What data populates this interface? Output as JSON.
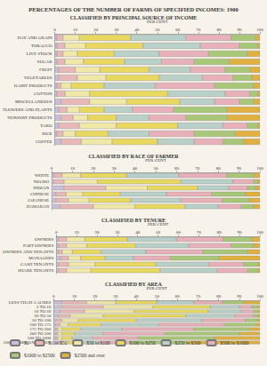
{
  "title": "PERCENTAGES OF THE NUMBER OF FARMS OF SPECIFIED INCOMES: 1900",
  "chart_data": [
    {
      "type": "bar",
      "orientation": "horizontal",
      "stacked": true,
      "grid": false,
      "title": "CLASSIFIED BY PRINCIPAL SOURCE OF INCOME",
      "xlabel": "PER CENT",
      "xlim": [
        0,
        100
      ],
      "xticks": [
        0,
        10,
        20,
        30,
        40,
        50,
        60,
        70,
        80,
        90,
        100
      ],
      "categories": [
        "HAY AND GRAIN",
        "TOBACCO",
        "LIVE STOCK",
        "SUGAR",
        "FRUIT",
        "VEGETABLES",
        "DAIRY PRODUCTS",
        "COTTON",
        "MISCELLANEOUS",
        "FLOWERS AND PLANTS",
        "NURSERY PRODUCTS",
        "TARO",
        "RICE",
        "COFFEE"
      ],
      "series": [
        {
          "name": "$0",
          "color": "#c8c0d8",
          "values": [
            1,
            1,
            1,
            1,
            2,
            2,
            1,
            1,
            3,
            2,
            3,
            2,
            1,
            3
          ]
        },
        {
          "name": "$1 to $50",
          "color": "#e8b8b8",
          "values": [
            3,
            4,
            3,
            4,
            8,
            9,
            2,
            4,
            14,
            4,
            6,
            10,
            3,
            10
          ]
        },
        {
          "name": "$50 to $100",
          "color": "#f0e8a8",
          "values": [
            8,
            10,
            7,
            9,
            12,
            14,
            5,
            12,
            18,
            6,
            7,
            18,
            6,
            15
          ]
        },
        {
          "name": "$100 to $250",
          "color": "#e8d860",
          "values": [
            25,
            28,
            18,
            20,
            24,
            26,
            16,
            38,
            26,
            12,
            14,
            30,
            16,
            22
          ]
        },
        {
          "name": "$250 to $500",
          "color": "#b8d0c8",
          "values": [
            27,
            28,
            22,
            18,
            20,
            21,
            25,
            28,
            17,
            14,
            16,
            22,
            20,
            18
          ]
        },
        {
          "name": "$500 to $1000",
          "color": "#e8b0b8",
          "values": [
            22,
            19,
            24,
            16,
            17,
            15,
            29,
            12,
            12,
            20,
            18,
            12,
            22,
            14
          ]
        },
        {
          "name": "$1000 to $2500",
          "color": "#a8c878",
          "values": [
            12,
            9,
            19,
            17,
            12,
            9,
            19,
            4,
            7,
            26,
            20,
            5,
            20,
            10
          ]
        },
        {
          "name": "$2500 and over",
          "color": "#e0b040",
          "values": [
            2,
            1,
            6,
            15,
            5,
            4,
            3,
            1,
            3,
            16,
            16,
            1,
            12,
            8
          ]
        }
      ]
    },
    {
      "type": "bar",
      "orientation": "horizontal",
      "stacked": true,
      "grid": false,
      "title": "CLASSIFIED BY RACE OF FARMER",
      "xlabel": "PER CENT",
      "xlim": [
        0,
        100
      ],
      "xticks": [
        0,
        10,
        20,
        30,
        40,
        50,
        60,
        70,
        80,
        90,
        100
      ],
      "categories": [
        "WHITE",
        "NEGRO",
        "INDIAN",
        "CHINESE",
        "JAPANESE",
        "HAWAIIAN"
      ],
      "series": [
        {
          "name": "$0",
          "color": "#c8c0d8",
          "values": [
            1,
            1,
            6,
            2,
            2,
            4
          ]
        },
        {
          "name": "$1 to $50",
          "color": "#e8b8b8",
          "values": [
            4,
            5,
            20,
            5,
            6,
            16
          ]
        },
        {
          "name": "$50 to $100",
          "color": "#f0e8a8",
          "values": [
            9,
            16,
            20,
            8,
            10,
            20
          ]
        },
        {
          "name": "$100 to $250",
          "color": "#e8d860",
          "values": [
            22,
            40,
            24,
            18,
            20,
            24
          ]
        },
        {
          "name": "$250 to $500",
          "color": "#b8d0c8",
          "values": [
            25,
            25,
            15,
            22,
            24,
            16
          ]
        },
        {
          "name": "$500 to $1000",
          "color": "#e8b0b8",
          "values": [
            23,
            10,
            9,
            22,
            20,
            11
          ]
        },
        {
          "name": "$1000 to $2500",
          "color": "#a8c878",
          "values": [
            13,
            2,
            4,
            16,
            13,
            6
          ]
        },
        {
          "name": "$2500 and over",
          "color": "#e0b040",
          "values": [
            3,
            1,
            2,
            7,
            5,
            3
          ]
        }
      ]
    },
    {
      "type": "bar",
      "orientation": "horizontal",
      "stacked": true,
      "grid": false,
      "title": "CLASSIFIED BY TENURE",
      "xlabel": "PER CENT",
      "xlim": [
        0,
        100
      ],
      "xticks": [
        0,
        10,
        20,
        30,
        40,
        50,
        60,
        70,
        80,
        90,
        100
      ],
      "categories": [
        "OWNERS",
        "PART OWNERS",
        "OWNERS AND TENANTS",
        "MANAGERS",
        "CASH TENANTS",
        "SHARE TENANTS"
      ],
      "series": [
        {
          "name": "$0",
          "color": "#c8c0d8",
          "values": [
            1,
            1,
            1,
            2,
            1,
            1
          ]
        },
        {
          "name": "$1 to $50",
          "color": "#e8b8b8",
          "values": [
            4,
            4,
            2,
            4,
            5,
            4
          ]
        },
        {
          "name": "$50 to $100",
          "color": "#f0e8a8",
          "values": [
            9,
            10,
            5,
            6,
            13,
            12
          ]
        },
        {
          "name": "$100 to $250",
          "color": "#e8d860",
          "values": [
            21,
            24,
            14,
            12,
            30,
            34
          ]
        },
        {
          "name": "$250 to $500",
          "color": "#b8d0c8",
          "values": [
            24,
            26,
            22,
            14,
            26,
            28
          ]
        },
        {
          "name": "$500 to $1000",
          "color": "#e8b0b8",
          "values": [
            23,
            21,
            28,
            18,
            17,
            15
          ]
        },
        {
          "name": "$1000 to $2500",
          "color": "#a8c878",
          "values": [
            14,
            11,
            22,
            24,
            7,
            5
          ]
        },
        {
          "name": "$2500 and over",
          "color": "#e0b040",
          "values": [
            4,
            3,
            6,
            20,
            1,
            1
          ]
        }
      ]
    },
    {
      "type": "bar",
      "orientation": "horizontal",
      "stacked": true,
      "grid": false,
      "legend": "bottom",
      "title": "CLASSIFIED BY AREA",
      "xlabel": "PER CENT",
      "xlim": [
        0,
        100
      ],
      "xticks": [
        0,
        10,
        20,
        30,
        40,
        50,
        60,
        70,
        80,
        90,
        100
      ],
      "categories": [
        "LESS THAN 3 ACRES",
        "3 TO 10",
        "10 TO 20",
        "20 TO 50",
        "50 TO 100",
        "100 TO 175",
        "175 TO 260",
        "260 TO 500",
        "500 TO 1000",
        "1000 ACRES AND OVER"
      ],
      "series": [
        {
          "name": "$0",
          "color": "#c8c0d8",
          "values": [
            4,
            4,
            3,
            2,
            1,
            1,
            1,
            1,
            1,
            2
          ]
        },
        {
          "name": "$1 to $50",
          "color": "#e8b8b8",
          "values": [
            12,
            20,
            12,
            6,
            3,
            2,
            1,
            1,
            1,
            2
          ]
        },
        {
          "name": "$50 to $100",
          "color": "#f0e8a8",
          "values": [
            14,
            24,
            24,
            16,
            8,
            4,
            2,
            2,
            2,
            3
          ]
        },
        {
          "name": "$100 to $250",
          "color": "#e8d860",
          "values": [
            20,
            28,
            36,
            40,
            28,
            16,
            9,
            6,
            5,
            6
          ]
        },
        {
          "name": "$250 to $500",
          "color": "#b8d0c8",
          "values": [
            18,
            14,
            16,
            24,
            32,
            28,
            20,
            14,
            10,
            9
          ]
        },
        {
          "name": "$500 to $1000",
          "color": "#e8b0b8",
          "values": [
            14,
            6,
            6,
            9,
            21,
            32,
            35,
            30,
            22,
            15
          ]
        },
        {
          "name": "$1000 to $2500",
          "color": "#a8c878",
          "values": [
            10,
            3,
            2,
            2,
            6,
            15,
            27,
            36,
            37,
            28
          ]
        },
        {
          "name": "$2500 and over",
          "color": "#e0b040",
          "values": [
            8,
            1,
            1,
            1,
            1,
            2,
            5,
            10,
            22,
            35
          ]
        }
      ]
    }
  ]
}
